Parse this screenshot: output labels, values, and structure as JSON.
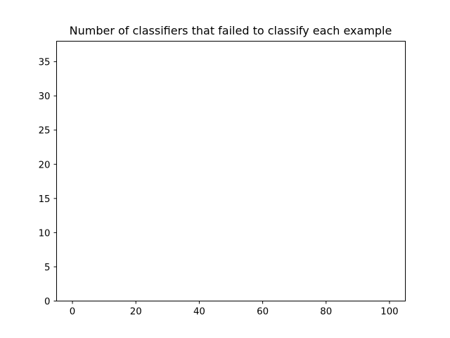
{
  "chart_data": {
    "type": "bar",
    "title": "Number of classifiers that failed to classify each example",
    "xlabel": "",
    "ylabel": "",
    "xlim": [
      -5,
      105
    ],
    "ylim": [
      0,
      38
    ],
    "xticks": [
      0,
      20,
      40,
      60,
      80,
      100
    ],
    "yticks": [
      0,
      5,
      10,
      15,
      20,
      25,
      30,
      35
    ],
    "grid": false,
    "legend": "none",
    "x": [],
    "values": [],
    "colors": {
      "axes": "#000000",
      "background": "#ffffff",
      "bar": "#1f77b4"
    }
  }
}
